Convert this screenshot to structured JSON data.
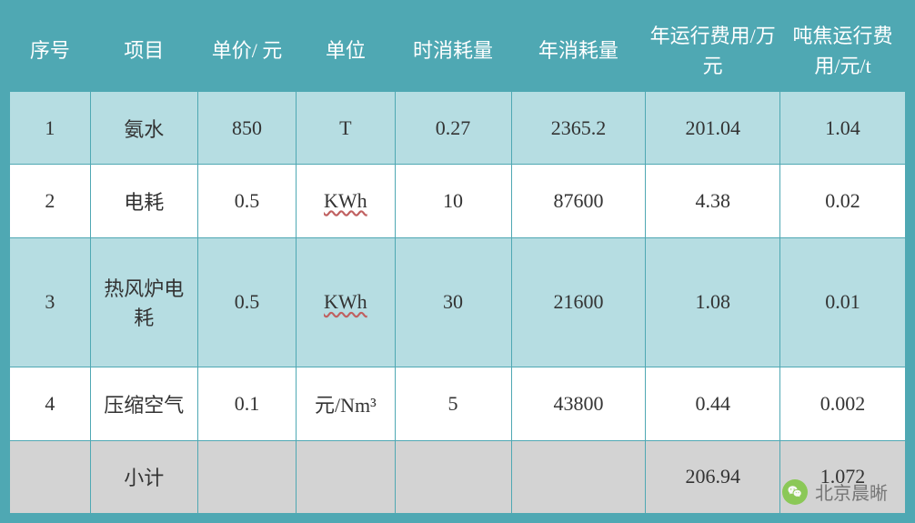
{
  "table": {
    "columns": [
      "序号",
      "项目",
      "单价/ 元",
      "单位",
      "时消耗量",
      "年消耗量",
      "年运行费用/万元",
      "吨焦运行费用/元/t"
    ],
    "col_widths": [
      "9%",
      "12%",
      "11%",
      "11%",
      "13%",
      "15%",
      "15%",
      "14%"
    ],
    "rows": [
      {
        "seq": "1",
        "item": "氨水",
        "price": "850",
        "unit": "T",
        "hourly": "0.27",
        "annual": "2365.2",
        "annual_cost": "201.04",
        "ton_cost": "1.04",
        "row_class": "even",
        "unit_underline": false
      },
      {
        "seq": "2",
        "item": "电耗",
        "price": "0.5",
        "unit": "KWh",
        "hourly": "10",
        "annual": "87600",
        "annual_cost": "4.38",
        "ton_cost": "0.02",
        "row_class": "odd",
        "unit_underline": true
      },
      {
        "seq": "3",
        "item": "热风炉电耗",
        "price": "0.5",
        "unit": "KWh",
        "hourly": "30",
        "annual": "21600",
        "annual_cost": "1.08",
        "ton_cost": "0.01",
        "row_class": "even",
        "unit_underline": true
      },
      {
        "seq": "4",
        "item": "压缩空气",
        "price": "0.1",
        "unit": "元/Nm³",
        "hourly": "5",
        "annual": "43800",
        "annual_cost": "0.44",
        "ton_cost": "0.002",
        "row_class": "odd",
        "unit_underline": false
      }
    ],
    "subtotal": {
      "label": "小计",
      "annual_cost": "206.94",
      "ton_cost": "1.072"
    },
    "header_bg": "#4fa8b3",
    "header_color": "#ffffff",
    "even_row_bg": "#b6dde2",
    "odd_row_bg": "#ffffff",
    "subtotal_bg": "#d3d3d3",
    "border_color": "#4fa8b3",
    "font_size_header": 22,
    "font_size_body": 22,
    "text_color": "#333333"
  },
  "watermark": {
    "text": "北京晨晰"
  }
}
